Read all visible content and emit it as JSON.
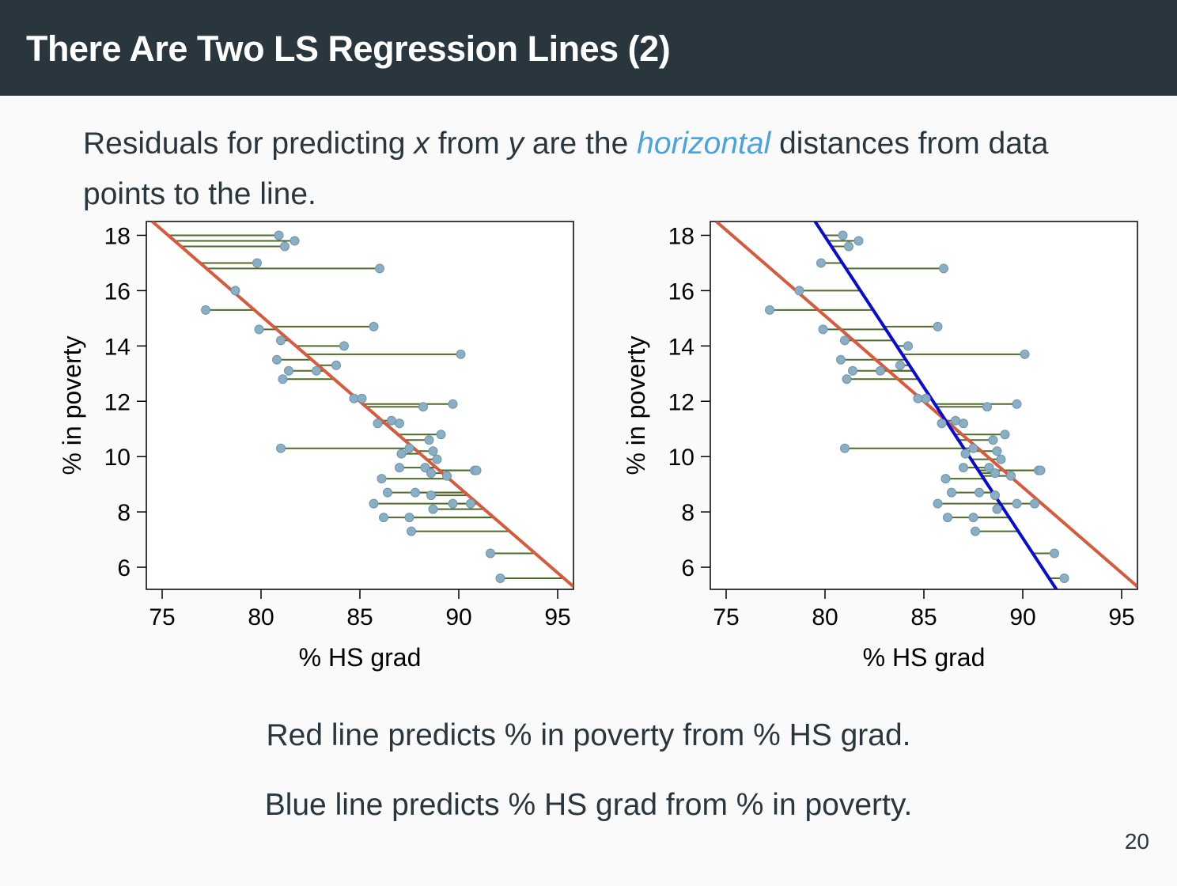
{
  "slide": {
    "title": "There Are Two LS Regression Lines (2)",
    "intro_pre": "Residuals for predicting ",
    "intro_x": "x",
    "intro_mid1": " from ",
    "intro_y": "y",
    "intro_mid2": " are the ",
    "intro_emph": "horizontal",
    "intro_post": " distances from data points to the line.",
    "caption_red": "Red line predicts % in poverty from % HS grad.",
    "caption_blue": "Blue line predicts % HS grad from % in poverty.",
    "page_number": "20"
  },
  "colors": {
    "header_bg": "#29363d",
    "emphasis": "#4aa3df",
    "red_line": "#d9593d",
    "blue_line": "#0a0ad6",
    "residual": "#4f6b2a",
    "point": "#8aaec4"
  },
  "chart_data": [
    {
      "type": "scatter",
      "xlabel": "% HS grad",
      "ylabel": "% in poverty",
      "xlim": [
        74.2,
        95.8
      ],
      "ylim": [
        5.2,
        18.5
      ],
      "xticks": [
        75,
        80,
        85,
        90,
        95
      ],
      "yticks": [
        6,
        8,
        10,
        12,
        14,
        16,
        18
      ],
      "lines": [
        {
          "color": "red",
          "x": [
            74.5,
            95.8
          ],
          "y": [
            18.5,
            5.3
          ],
          "predicts": "y from x"
        }
      ],
      "residuals": "horizontal",
      "points": [
        [
          80.9,
          18.0
        ],
        [
          81.7,
          17.8
        ],
        [
          81.2,
          17.6
        ],
        [
          79.8,
          17.0
        ],
        [
          86.0,
          16.8
        ],
        [
          78.7,
          16.0
        ],
        [
          77.2,
          15.3
        ],
        [
          79.9,
          14.6
        ],
        [
          85.7,
          14.7
        ],
        [
          81.0,
          14.2
        ],
        [
          84.2,
          14.0
        ],
        [
          90.1,
          13.7
        ],
        [
          80.8,
          13.5
        ],
        [
          83.8,
          13.3
        ],
        [
          82.8,
          13.1
        ],
        [
          81.4,
          13.1
        ],
        [
          81.1,
          12.8
        ],
        [
          84.7,
          12.1
        ],
        [
          85.1,
          12.1
        ],
        [
          88.2,
          11.8
        ],
        [
          89.7,
          11.9
        ],
        [
          86.6,
          11.3
        ],
        [
          87.0,
          11.2
        ],
        [
          85.9,
          11.2
        ],
        [
          89.1,
          10.8
        ],
        [
          88.5,
          10.6
        ],
        [
          81.0,
          10.3
        ],
        [
          87.5,
          10.3
        ],
        [
          88.7,
          10.2
        ],
        [
          87.1,
          10.1
        ],
        [
          88.9,
          9.9
        ],
        [
          87.0,
          9.6
        ],
        [
          88.3,
          9.6
        ],
        [
          88.6,
          9.4
        ],
        [
          89.4,
          9.3
        ],
        [
          90.8,
          9.5
        ],
        [
          90.9,
          9.5
        ],
        [
          86.1,
          9.2
        ],
        [
          86.4,
          8.7
        ],
        [
          87.8,
          8.7
        ],
        [
          88.6,
          8.6
        ],
        [
          89.7,
          8.3
        ],
        [
          90.6,
          8.3
        ],
        [
          85.7,
          8.3
        ],
        [
          88.7,
          8.1
        ],
        [
          86.2,
          7.8
        ],
        [
          87.5,
          7.8
        ],
        [
          87.6,
          7.3
        ],
        [
          91.6,
          6.5
        ],
        [
          92.1,
          5.6
        ]
      ]
    },
    {
      "type": "scatter",
      "xlabel": "% HS grad",
      "ylabel": "% in poverty",
      "xlim": [
        74.2,
        95.8
      ],
      "ylim": [
        5.2,
        18.5
      ],
      "xticks": [
        75,
        80,
        85,
        90,
        95
      ],
      "yticks": [
        6,
        8,
        10,
        12,
        14,
        16,
        18
      ],
      "lines": [
        {
          "color": "red",
          "x": [
            74.5,
            95.8
          ],
          "y": [
            18.5,
            5.3
          ],
          "predicts": "y from x"
        },
        {
          "color": "blue",
          "x": [
            79.5,
            91.7
          ],
          "y": [
            18.5,
            5.2
          ],
          "predicts": "x from y"
        }
      ],
      "residuals": "horizontal",
      "residual_target": "blue",
      "points": [
        [
          80.9,
          18.0
        ],
        [
          81.7,
          17.8
        ],
        [
          81.2,
          17.6
        ],
        [
          79.8,
          17.0
        ],
        [
          86.0,
          16.8
        ],
        [
          78.7,
          16.0
        ],
        [
          77.2,
          15.3
        ],
        [
          79.9,
          14.6
        ],
        [
          85.7,
          14.7
        ],
        [
          81.0,
          14.2
        ],
        [
          84.2,
          14.0
        ],
        [
          90.1,
          13.7
        ],
        [
          80.8,
          13.5
        ],
        [
          83.8,
          13.3
        ],
        [
          82.8,
          13.1
        ],
        [
          81.4,
          13.1
        ],
        [
          81.1,
          12.8
        ],
        [
          84.7,
          12.1
        ],
        [
          85.1,
          12.1
        ],
        [
          88.2,
          11.8
        ],
        [
          89.7,
          11.9
        ],
        [
          86.6,
          11.3
        ],
        [
          87.0,
          11.2
        ],
        [
          85.9,
          11.2
        ],
        [
          89.1,
          10.8
        ],
        [
          88.5,
          10.6
        ],
        [
          81.0,
          10.3
        ],
        [
          87.5,
          10.3
        ],
        [
          88.7,
          10.2
        ],
        [
          87.1,
          10.1
        ],
        [
          88.9,
          9.9
        ],
        [
          87.0,
          9.6
        ],
        [
          88.3,
          9.6
        ],
        [
          88.6,
          9.4
        ],
        [
          89.4,
          9.3
        ],
        [
          90.8,
          9.5
        ],
        [
          90.9,
          9.5
        ],
        [
          86.1,
          9.2
        ],
        [
          86.4,
          8.7
        ],
        [
          87.8,
          8.7
        ],
        [
          88.6,
          8.6
        ],
        [
          89.7,
          8.3
        ],
        [
          90.6,
          8.3
        ],
        [
          85.7,
          8.3
        ],
        [
          88.7,
          8.1
        ],
        [
          86.2,
          7.8
        ],
        [
          87.5,
          7.8
        ],
        [
          87.6,
          7.3
        ],
        [
          91.6,
          6.5
        ],
        [
          92.1,
          5.6
        ]
      ]
    }
  ]
}
